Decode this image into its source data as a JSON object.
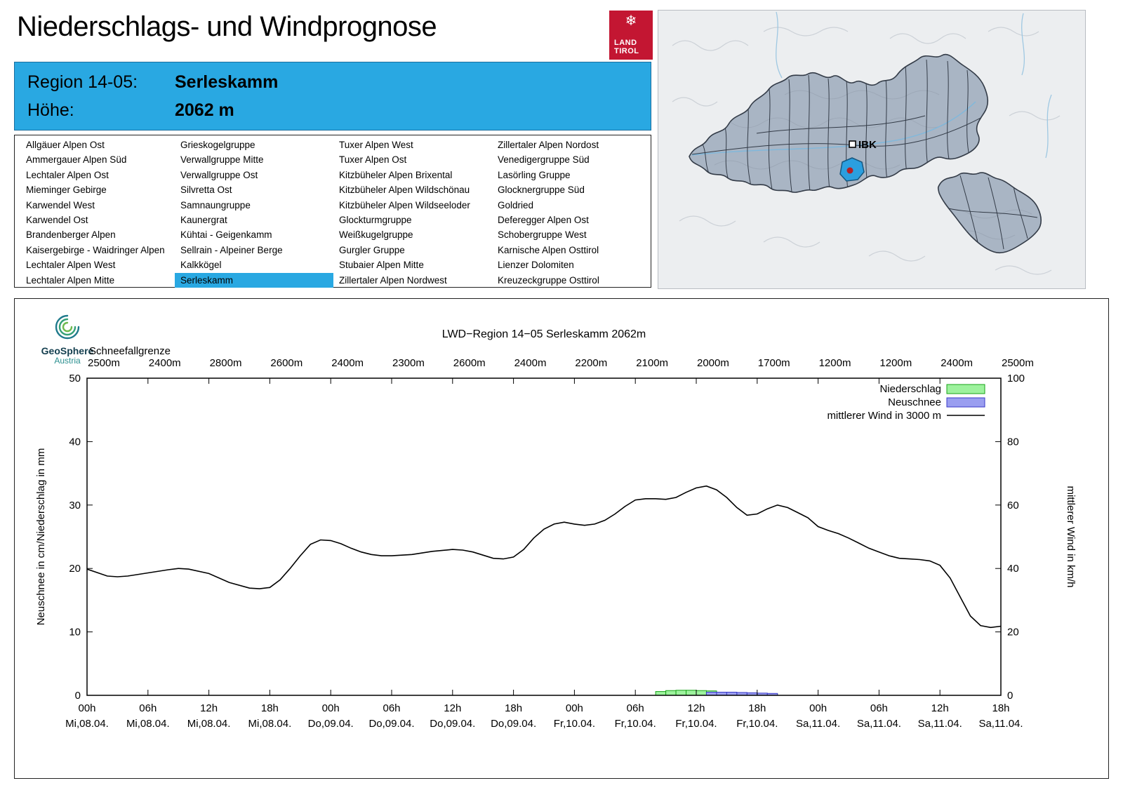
{
  "header": {
    "title": "Niederschlags- und Windprognose",
    "logo": {
      "line1": "LAND",
      "line2": "TIROL",
      "flake": "❄"
    }
  },
  "region_info": {
    "region_label": "Region 14-05:",
    "region_value": "Serleskamm",
    "elevation_label": "Höhe:",
    "elevation_value": "2062 m",
    "bg_color": "#29a8e2"
  },
  "map": {
    "marker_label": "IBK",
    "selected_region_color": "#2b9fdf",
    "station_dot_color": "#b52025"
  },
  "region_list": {
    "selected": "Serleskamm",
    "highlight_color": "#29a8e2",
    "columns": [
      [
        "Allgäuer Alpen Ost",
        "Ammergauer Alpen Süd",
        "Lechtaler Alpen Ost",
        "Mieminger Gebirge",
        "Karwendel West",
        "Karwendel Ost",
        "Brandenberger Alpen",
        "Kaisergebirge - Waidringer Alpen",
        "Lechtaler Alpen West",
        "Lechtaler Alpen Mitte"
      ],
      [
        "Grieskogelgruppe",
        "Verwallgruppe Mitte",
        "Verwallgruppe Ost",
        "Silvretta Ost",
        "Samnaungruppe",
        "Kaunergrat",
        "Kühtai - Geigenkamm",
        "Sellrain - Alpeiner Berge",
        "Kalkkögel",
        "Serleskamm"
      ],
      [
        "Tuxer Alpen West",
        "Tuxer Alpen Ost",
        "Kitzbüheler Alpen Brixental",
        "Kitzbüheler Alpen Wildschönau",
        "Kitzbüheler Alpen Wildseeloder",
        "Glockturmgruppe",
        "Weißkugelgruppe",
        "Gurgler Gruppe",
        "Stubaier Alpen Mitte",
        "Zillertaler Alpen Nordwest"
      ],
      [
        "Zillertaler Alpen Nordost",
        "Venedigergruppe Süd",
        "Lasörling Gruppe",
        "Glocknergruppe Süd",
        "Goldried",
        "Deferegger Alpen Ost",
        "Schobergruppe West",
        "Karnische Alpen Osttirol",
        "Lienzer Dolomiten",
        "Kreuzeckgruppe Osttirol"
      ]
    ]
  },
  "chart": {
    "brand": {
      "name": "GeoSphere",
      "sub": "Austria"
    }
  },
  "chart_data": {
    "type": "line+bar",
    "title": "LWD−Region 14−05 Serleskamm 2062m",
    "snowline": {
      "label": "Schneefallgrenze",
      "values": [
        "2500m",
        "2400m",
        "2800m",
        "2600m",
        "2400m",
        "2300m",
        "2600m",
        "2400m",
        "2200m",
        "2100m",
        "2000m",
        "1700m",
        "1200m",
        "1200m",
        "2400m",
        "2500m"
      ]
    },
    "x_axis": {
      "range_hours": [
        0,
        90
      ],
      "tick_hours": [
        0,
        6,
        12,
        18,
        24,
        30,
        36,
        42,
        48,
        54,
        60,
        66,
        72,
        78,
        84,
        90
      ],
      "tick_times": [
        "00h",
        "06h",
        "12h",
        "18h",
        "00h",
        "06h",
        "12h",
        "18h",
        "00h",
        "06h",
        "12h",
        "18h",
        "00h",
        "06h",
        "12h",
        "18h"
      ],
      "tick_dates": [
        "Mi,08.04.",
        "Mi,08.04.",
        "Mi,08.04.",
        "Mi,08.04.",
        "Do,09.04.",
        "Do,09.04.",
        "Do,09.04.",
        "Do,09.04.",
        "Fr,10.04.",
        "Fr,10.04.",
        "Fr,10.04.",
        "Fr,10.04.",
        "Sa,11.04.",
        "Sa,11.04.",
        "Sa,11.04.",
        "Sa,11.04."
      ]
    },
    "y_left": {
      "label": "Neuschnee in cm/Niederschlag in mm",
      "range": [
        0,
        50
      ],
      "ticks": [
        0,
        10,
        20,
        30,
        40,
        50
      ]
    },
    "y_right": {
      "label": "mittlerer Wind in km/h",
      "range": [
        0,
        100
      ],
      "ticks": [
        0,
        20,
        40,
        60,
        80,
        100
      ]
    },
    "legend": [
      {
        "label": "Niederschlag",
        "type": "box",
        "fill": "#9df29d",
        "stroke": "#17a317"
      },
      {
        "label": "Neuschnee",
        "type": "box",
        "fill": "#9a9ef0",
        "stroke": "#3a3ac8"
      },
      {
        "label": "mittlerer Wind in 3000 m",
        "type": "line",
        "stroke": "#000000"
      }
    ],
    "wind_kmh": [
      [
        0,
        39.8
      ],
      [
        2,
        37.6
      ],
      [
        3,
        37.4
      ],
      [
        4,
        37.6
      ],
      [
        6,
        38.6
      ],
      [
        8,
        39.6
      ],
      [
        9,
        40
      ],
      [
        10,
        39.8
      ],
      [
        12,
        38.4
      ],
      [
        14,
        35.6
      ],
      [
        16,
        33.8
      ],
      [
        17,
        33.6
      ],
      [
        18,
        34
      ],
      [
        19,
        36.4
      ],
      [
        20,
        40
      ],
      [
        21,
        44
      ],
      [
        22,
        47.6
      ],
      [
        23,
        49
      ],
      [
        24,
        48.8
      ],
      [
        25,
        47.8
      ],
      [
        26,
        46.4
      ],
      [
        27,
        45.2
      ],
      [
        28,
        44.4
      ],
      [
        29,
        44
      ],
      [
        30,
        44
      ],
      [
        32,
        44.4
      ],
      [
        34,
        45.4
      ],
      [
        36,
        46
      ],
      [
        37,
        45.8
      ],
      [
        38,
        45.2
      ],
      [
        39,
        44.2
      ],
      [
        40,
        43.2
      ],
      [
        41,
        43
      ],
      [
        42,
        43.6
      ],
      [
        43,
        46
      ],
      [
        44,
        49.6
      ],
      [
        45,
        52.4
      ],
      [
        46,
        54
      ],
      [
        47,
        54.6
      ],
      [
        48,
        54
      ],
      [
        49,
        53.6
      ],
      [
        50,
        54
      ],
      [
        51,
        55.2
      ],
      [
        52,
        57.2
      ],
      [
        53,
        59.6
      ],
      [
        54,
        61.6
      ],
      [
        55,
        62
      ],
      [
        56,
        62
      ],
      [
        57,
        61.8
      ],
      [
        58,
        62.4
      ],
      [
        59,
        64
      ],
      [
        60,
        65.4
      ],
      [
        61,
        66
      ],
      [
        62,
        64.8
      ],
      [
        63,
        62.4
      ],
      [
        64,
        59.2
      ],
      [
        65,
        56.8
      ],
      [
        66,
        57.2
      ],
      [
        67,
        58.8
      ],
      [
        68,
        60
      ],
      [
        69,
        59.2
      ],
      [
        70,
        57.6
      ],
      [
        71,
        56
      ],
      [
        72,
        53.2
      ],
      [
        73,
        52
      ],
      [
        74,
        51
      ],
      [
        75,
        49.6
      ],
      [
        76,
        48
      ],
      [
        77,
        46.4
      ],
      [
        78,
        45.2
      ],
      [
        79,
        44
      ],
      [
        80,
        43.2
      ],
      [
        81,
        43
      ],
      [
        82,
        42.8
      ],
      [
        83,
        42.4
      ],
      [
        84,
        41
      ],
      [
        85,
        37
      ],
      [
        86,
        31
      ],
      [
        87,
        25
      ],
      [
        88,
        22
      ],
      [
        89,
        21.4
      ],
      [
        90,
        21.8
      ]
    ],
    "niederschlag_mm": [
      [
        56,
        0.6
      ],
      [
        57,
        0.75
      ],
      [
        58,
        0.8
      ],
      [
        59,
        0.8
      ],
      [
        60,
        0.75
      ],
      [
        61,
        0.7
      ],
      [
        62,
        0.4
      ],
      [
        63,
        0.4
      ],
      [
        64,
        0.35
      ],
      [
        65,
        0.3
      ],
      [
        66,
        0.3
      ],
      [
        67,
        0.25
      ]
    ],
    "neuschnee_cm": [
      [
        61,
        0.5
      ],
      [
        62,
        0.5
      ],
      [
        63,
        0.5
      ],
      [
        64,
        0.45
      ],
      [
        65,
        0.4
      ],
      [
        66,
        0.35
      ],
      [
        67,
        0.3
      ]
    ]
  }
}
